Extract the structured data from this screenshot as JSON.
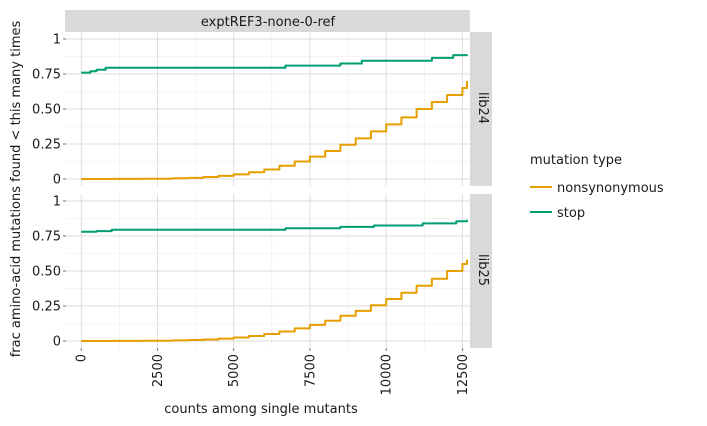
{
  "chart_data": {
    "type": "line",
    "x_label": "counts among single mutants",
    "y_label": "frac amino-acid mutations found < this many times",
    "column_strip": "exptREF3-none-0-ref",
    "xlim": [
      -500,
      12750
    ],
    "ylim": [
      -0.05,
      1.05
    ],
    "x_ticks": [
      0,
      2500,
      5000,
      7500,
      10000,
      12500
    ],
    "x_tick_labels": [
      "0",
      "2500",
      "5000",
      "7500",
      "10000",
      "12500"
    ],
    "y_ticks": [
      0,
      0.25,
      0.5,
      0.75,
      1
    ],
    "y_tick_labels": [
      "0",
      "0.25",
      "0.50",
      "0.75",
      "1"
    ],
    "legend": {
      "title": "mutation type",
      "position": "right",
      "entries": [
        {
          "label": "nonsynonymous",
          "color": "#E69F00"
        },
        {
          "label": "stop",
          "color": "#009E73"
        }
      ]
    },
    "panels": [
      {
        "row_strip": "lib24",
        "series": [
          {
            "name": "nonsynonymous",
            "color": "#E69F00",
            "x": [
              0,
              1000,
              2000,
              3000,
              3500,
              4000,
              4500,
              5000,
              5500,
              6000,
              6500,
              7000,
              7500,
              8000,
              8500,
              9000,
              9500,
              10000,
              10500,
              11000,
              11500,
              12000,
              12500,
              12650
            ],
            "y": [
              0.0,
              0.001,
              0.002,
              0.005,
              0.008,
              0.014,
              0.022,
              0.033,
              0.048,
              0.068,
              0.095,
              0.125,
              0.16,
              0.2,
              0.245,
              0.29,
              0.34,
              0.39,
              0.44,
              0.5,
              0.55,
              0.6,
              0.65,
              0.7
            ]
          },
          {
            "name": "stop",
            "color": "#009E73",
            "x": [
              0,
              300,
              500,
              800,
              6700,
              8500,
              9200,
              11500,
              12200,
              12650
            ],
            "y": [
              0.76,
              0.77,
              0.78,
              0.795,
              0.81,
              0.825,
              0.845,
              0.865,
              0.885,
              0.89
            ]
          }
        ]
      },
      {
        "row_strip": "lib25",
        "series": [
          {
            "name": "nonsynonymous",
            "color": "#E69F00",
            "x": [
              0,
              1000,
              2000,
              3000,
              3500,
              4000,
              4500,
              5000,
              5500,
              6000,
              6500,
              7000,
              7500,
              8000,
              8500,
              9000,
              9500,
              10000,
              10500,
              11000,
              11500,
              12000,
              12500,
              12650
            ],
            "y": [
              0.0,
              0.001,
              0.002,
              0.004,
              0.007,
              0.011,
              0.017,
              0.025,
              0.036,
              0.05,
              0.068,
              0.09,
              0.115,
              0.145,
              0.18,
              0.215,
              0.255,
              0.3,
              0.345,
              0.395,
              0.445,
              0.5,
              0.55,
              0.58
            ]
          },
          {
            "name": "stop",
            "color": "#009E73",
            "x": [
              0,
              500,
              1000,
              6700,
              8500,
              9600,
              11200,
              12300,
              12650
            ],
            "y": [
              0.78,
              0.785,
              0.795,
              0.805,
              0.815,
              0.825,
              0.84,
              0.855,
              0.865
            ]
          }
        ]
      }
    ]
  }
}
